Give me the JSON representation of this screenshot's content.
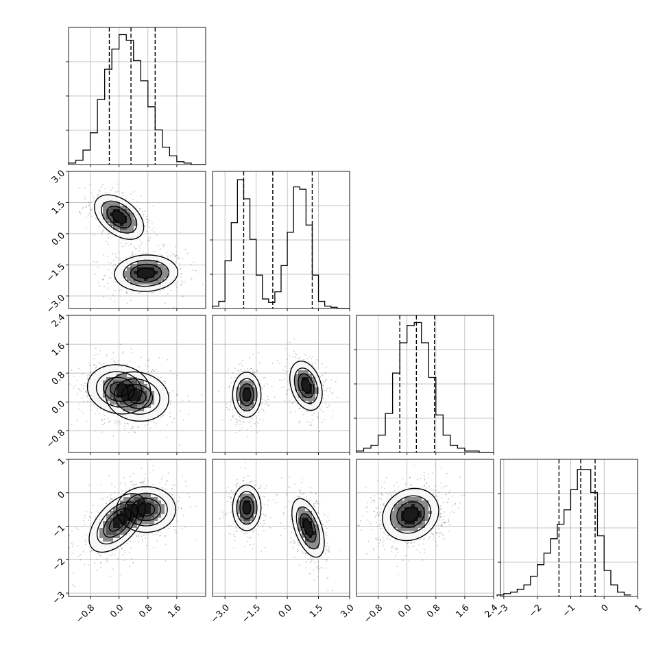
{
  "chart_data": {
    "type": "corner",
    "colors": {
      "ink": "#000000",
      "grid": "#b0b0b0",
      "scatter": "#000000"
    },
    "variables": [
      {
        "index": 0,
        "range": [
          -1.4,
          2.4
        ],
        "ticks": [
          -0.8,
          0.0,
          0.8,
          1.6
        ],
        "tick_labels": [
          "−0.8",
          "0.0",
          "0.8",
          "1.6"
        ]
      },
      {
        "index": 1,
        "range": [
          -3.6,
          3.0
        ],
        "ticks": [
          -3.0,
          -1.5,
          0.0,
          1.5,
          3.0
        ],
        "tick_labels": [
          "−3.0",
          "−1.5",
          "0.0",
          "1.5",
          "3.0"
        ]
      },
      {
        "index": 2,
        "range": [
          -1.4,
          2.4
        ],
        "ticks": [
          -0.8,
          0.0,
          0.8,
          1.6,
          2.4
        ],
        "tick_labels": [
          "−0.8",
          "0.0",
          "0.8",
          "1.6",
          "2.4"
        ]
      },
      {
        "index": 3,
        "range": [
          -3.1,
          1.0
        ],
        "ticks": [
          -3,
          -2,
          -1,
          0,
          1
        ],
        "tick_labels": [
          "−3",
          "−2",
          "−1",
          "0",
          "1"
        ]
      }
    ],
    "histograms": [
      {
        "var": 0,
        "bin_edges": [
          -1.4,
          -1.2,
          -1.0,
          -0.8,
          -0.6,
          -0.4,
          -0.2,
          0.0,
          0.2,
          0.4,
          0.6,
          0.8,
          1.0,
          1.2,
          1.4,
          1.6,
          1.8,
          2.0,
          2.2,
          2.4
        ],
        "counts": [
          1,
          3,
          10,
          22,
          45,
          66,
          80,
          90,
          86,
          72,
          58,
          40,
          24,
          12,
          6,
          2,
          1,
          0,
          0
        ],
        "quantiles": [
          -0.27,
          0.33,
          1.0
        ],
        "ylim": [
          0,
          95
        ]
      },
      {
        "var": 1,
        "bin_edges": [
          -3.6,
          -3.3,
          -3.0,
          -2.7,
          -2.4,
          -2.1,
          -1.8,
          -1.5,
          -1.2,
          -0.9,
          -0.6,
          -0.3,
          0.0,
          0.3,
          0.6,
          0.9,
          1.2,
          1.5,
          1.8,
          2.1,
          2.4,
          2.7,
          3.0
        ],
        "counts": [
          2,
          6,
          40,
          72,
          108,
          92,
          58,
          28,
          8,
          5,
          14,
          36,
          64,
          102,
          100,
          70,
          28,
          6,
          2,
          1,
          0,
          0
        ],
        "quantiles": [
          -2.1,
          -0.7,
          1.2
        ],
        "ylim": [
          0,
          115
        ]
      },
      {
        "var": 2,
        "bin_edges": [
          -1.4,
          -1.2,
          -1.0,
          -0.8,
          -0.6,
          -0.4,
          -0.2,
          0.0,
          0.2,
          0.4,
          0.6,
          0.8,
          1.0,
          1.2,
          1.4,
          1.6,
          1.8,
          2.0,
          2.2,
          2.4
        ],
        "counts": [
          1,
          3,
          5,
          12,
          27,
          55,
          76,
          88,
          90,
          76,
          52,
          26,
          12,
          5,
          3,
          1,
          1,
          0,
          0
        ],
        "quantiles": [
          -0.2,
          0.26,
          0.76
        ],
        "ylim": [
          0,
          95
        ]
      },
      {
        "var": 3,
        "bin_edges": [
          -3.2,
          -3.0,
          -2.8,
          -2.6,
          -2.4,
          -2.2,
          -2.0,
          -1.8,
          -1.6,
          -1.4,
          -1.2,
          -1.0,
          -0.8,
          -0.6,
          -0.4,
          -0.2,
          0.0,
          0.2,
          0.4,
          0.6,
          0.8
        ],
        "counts": [
          1,
          2,
          3,
          5,
          8,
          14,
          22,
          30,
          40,
          50,
          60,
          74,
          88,
          88,
          72,
          42,
          18,
          8,
          3,
          1
        ],
        "quantiles": [
          -1.35,
          -0.7,
          -0.27
        ],
        "ylim": [
          0,
          95
        ]
      }
    ],
    "panels_2d": [
      {
        "x": 0,
        "y": 1,
        "components": [
          {
            "mean": [
              0.0,
              0.8
            ],
            "std": [
              0.35,
              0.55
            ],
            "rho": -0.45
          },
          {
            "mean": [
              0.75,
              -1.9
            ],
            "std": [
              0.45,
              0.45
            ],
            "rho": 0.05
          }
        ]
      },
      {
        "x": 0,
        "y": 2,
        "components": [
          {
            "mean": [
              0.0,
              0.35
            ],
            "std": [
              0.45,
              0.35
            ],
            "rho": -0.1
          },
          {
            "mean": [
              0.5,
              0.15
            ],
            "std": [
              0.45,
              0.35
            ],
            "rho": -0.1
          }
        ]
      },
      {
        "x": 1,
        "y": 2,
        "components": [
          {
            "mean": [
              -1.95,
              0.2
            ],
            "std": [
              0.35,
              0.32
            ],
            "rho": 0.0
          },
          {
            "mean": [
              0.9,
              0.45
            ],
            "std": [
              0.4,
              0.35
            ],
            "rho": -0.3
          }
        ]
      },
      {
        "x": 0,
        "y": 3,
        "components": [
          {
            "mean": [
              -0.05,
              -0.9
            ],
            "std": [
              0.4,
              0.45
            ],
            "rho": 0.55
          },
          {
            "mean": [
              0.75,
              -0.5
            ],
            "std": [
              0.42,
              0.35
            ],
            "rho": 0.0
          }
        ]
      },
      {
        "x": 1,
        "y": 3,
        "components": [
          {
            "mean": [
              -1.95,
              -0.45
            ],
            "std": [
              0.35,
              0.35
            ],
            "rho": 0.0
          },
          {
            "mean": [
              1.0,
              -1.05
            ],
            "std": [
              0.4,
              0.45
            ],
            "rho": -0.5
          }
        ]
      },
      {
        "x": 2,
        "y": 3,
        "components": [
          {
            "mean": [
              0.1,
              -0.65
            ],
            "std": [
              0.4,
              0.4
            ],
            "rho": 0.15
          }
        ]
      }
    ],
    "contour_levels": [
      0.8,
      0.6,
      0.4,
      0.12
    ],
    "grid": true
  }
}
